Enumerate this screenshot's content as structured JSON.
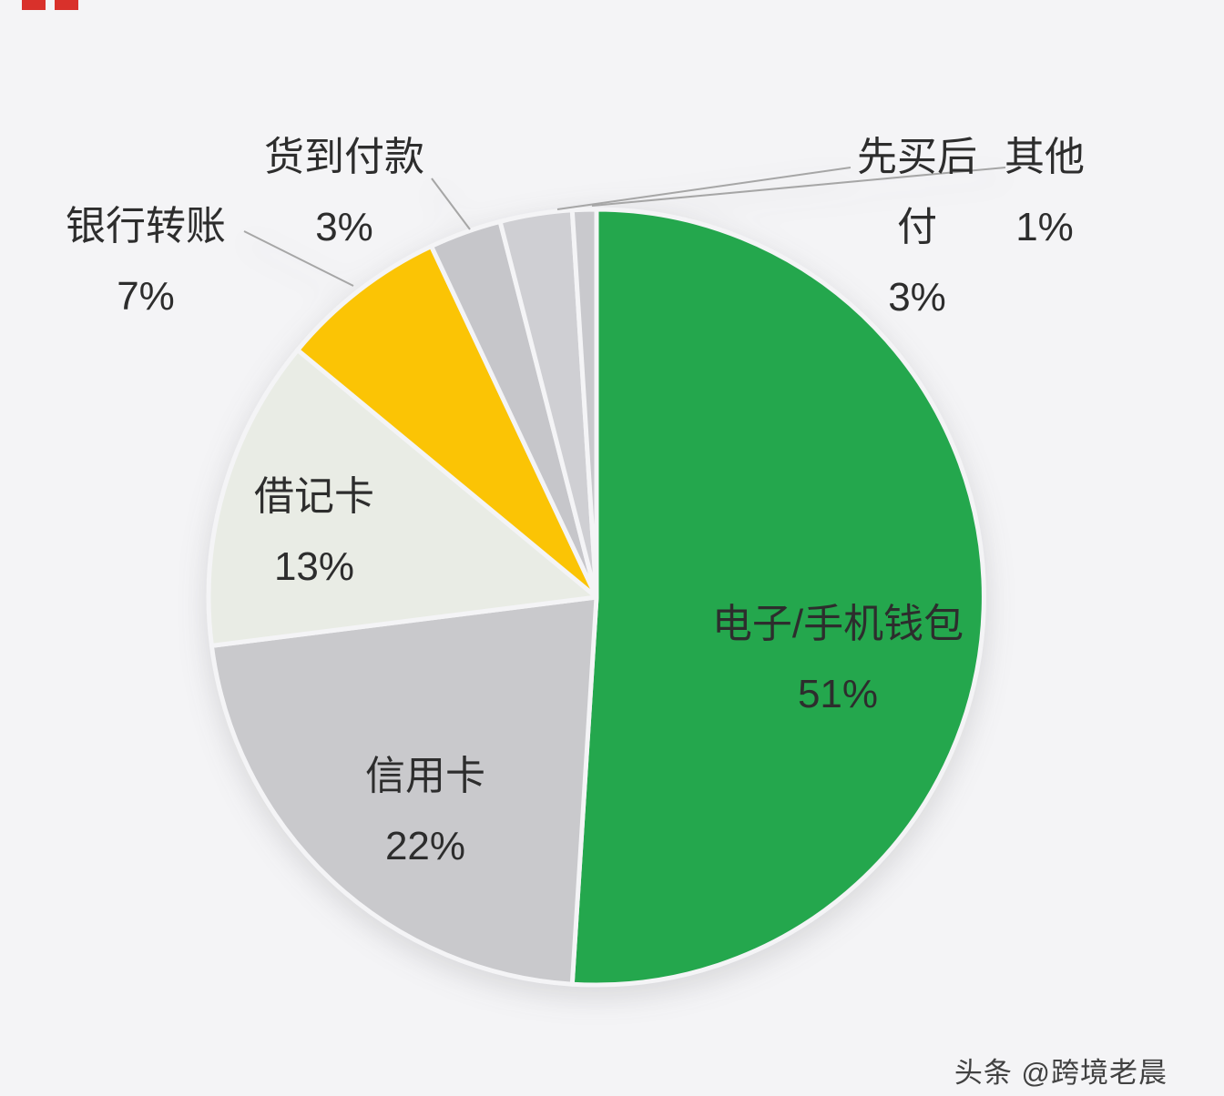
{
  "page": {
    "background_color": "#f4f4f6",
    "watermark": "头条 @跨境老晨",
    "corner_marks_color": "#d9312b"
  },
  "chart_data": {
    "type": "pie",
    "title": "",
    "direction": "clockwise",
    "start_angle_deg": 0,
    "gap_color": "#f4f4f6",
    "legend": "none",
    "slices": [
      {
        "key": "ewallet",
        "label": "电子/手机钱包",
        "value": 51,
        "pct_label": "51%",
        "color": "#24a74d",
        "label_placement": "inside"
      },
      {
        "key": "credit-card",
        "label": "信用卡",
        "value": 22,
        "pct_label": "22%",
        "color": "#c9c9cc",
        "label_placement": "inside"
      },
      {
        "key": "debit-card",
        "label": "借记卡",
        "value": 13,
        "pct_label": "13%",
        "color": "#e9ece5",
        "label_placement": "inside"
      },
      {
        "key": "bank-transfer",
        "label": "银行转账",
        "value": 7,
        "pct_label": "7%",
        "color": "#fbc405",
        "label_placement": "outside"
      },
      {
        "key": "cash-on-delivery",
        "label": "货到付款",
        "value": 3,
        "pct_label": "3%",
        "color": "#c6c6ca",
        "label_placement": "outside"
      },
      {
        "key": "buy-now-pay-later",
        "label": "先买后付",
        "value": 3,
        "pct_label": "3%",
        "color": "#cfcfd3",
        "label_placement": "outside"
      },
      {
        "key": "other",
        "label": "其他",
        "value": 1,
        "pct_label": "1%",
        "color": "#c9c9cd",
        "label_placement": "outside"
      }
    ]
  }
}
